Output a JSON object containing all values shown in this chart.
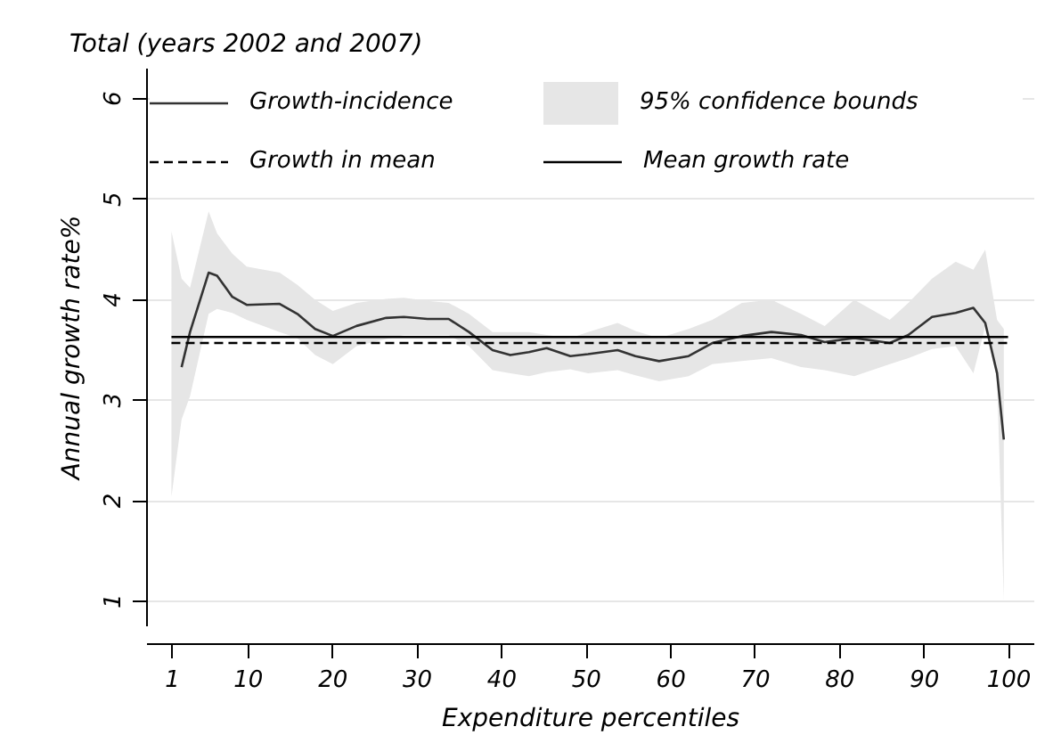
{
  "chart_data": {
    "type": "line",
    "title": "Total (years 2002 and 2007)",
    "xlabel": "Expenditure percentiles",
    "ylabel": "Annual growth rate%",
    "xlim": [
      -2,
      103
    ],
    "xticks": [
      1,
      10,
      20,
      30,
      40,
      50,
      60,
      70,
      80,
      90,
      100
    ],
    "ylim": [
      0.75,
      6.3
    ],
    "yticks": [
      1,
      2,
      3,
      4,
      5,
      6
    ],
    "grid": "y",
    "legend": "top",
    "annotations": [
      "95% confidence bounds"
    ],
    "series": [
      {
        "name": "Growth-incidence",
        "color": "#333333",
        "line_style": "solid",
        "x": [
          1,
          2.2,
          3.2,
          5.4,
          6.4,
          8.2,
          9.9,
          13.8,
          15.9,
          18,
          20.1,
          22.9,
          26.4,
          28.5,
          31.3,
          33.8,
          36.2,
          39,
          41.1,
          43.3,
          45.4,
          48.2,
          50.3,
          53.8,
          55.9,
          58.7,
          62.2,
          65,
          68.5,
          72,
          75.5,
          78.3,
          81.8,
          86,
          88.2,
          91,
          93.8,
          95.9,
          97.3,
          98.7,
          99.5
        ],
        "values": [
          null,
          3.32,
          3.67,
          4.26,
          4.23,
          4.02,
          3.94,
          3.95,
          3.85,
          3.7,
          3.63,
          3.73,
          3.81,
          3.82,
          3.8,
          3.8,
          3.67,
          3.49,
          3.44,
          3.47,
          3.51,
          3.43,
          3.45,
          3.49,
          3.43,
          3.38,
          3.43,
          3.56,
          3.63,
          3.67,
          3.64,
          3.57,
          3.61,
          3.56,
          3.64,
          3.82,
          3.86,
          3.91,
          3.76,
          3.26,
          2.6
        ],
        "lower": [
          2.03,
          2.8,
          3.03,
          3.85,
          3.9,
          3.86,
          3.79,
          3.67,
          3.61,
          3.44,
          3.35,
          3.53,
          3.6,
          3.64,
          3.64,
          3.64,
          3.53,
          3.29,
          3.26,
          3.23,
          3.27,
          3.3,
          3.26,
          3.29,
          3.24,
          3.18,
          3.23,
          3.35,
          3.38,
          3.41,
          3.32,
          3.29,
          3.23,
          3.35,
          3.41,
          3.5,
          3.53,
          3.26,
          3.73,
          3.2,
          1.0
        ],
        "upper": [
          4.67,
          4.2,
          4.11,
          4.87,
          4.65,
          4.45,
          4.32,
          4.26,
          4.14,
          3.99,
          3.88,
          3.96,
          4.0,
          4.01,
          3.98,
          3.96,
          3.85,
          3.67,
          3.67,
          3.67,
          3.64,
          3.61,
          3.67,
          3.76,
          3.68,
          3.61,
          3.7,
          3.79,
          3.96,
          3.99,
          3.85,
          3.73,
          3.99,
          3.79,
          3.96,
          4.2,
          4.37,
          4.29,
          4.49,
          3.79,
          3.7
        ]
      },
      {
        "name": "Growth in mean",
        "color": "#000000",
        "line_style": "dashed",
        "x": [
          1,
          100
        ],
        "values": [
          3.56,
          3.56
        ]
      },
      {
        "name": "Mean growth rate",
        "color": "#000000",
        "line_style": "solid",
        "x": [
          1,
          100
        ],
        "values": [
          3.62,
          3.62
        ]
      }
    ]
  }
}
